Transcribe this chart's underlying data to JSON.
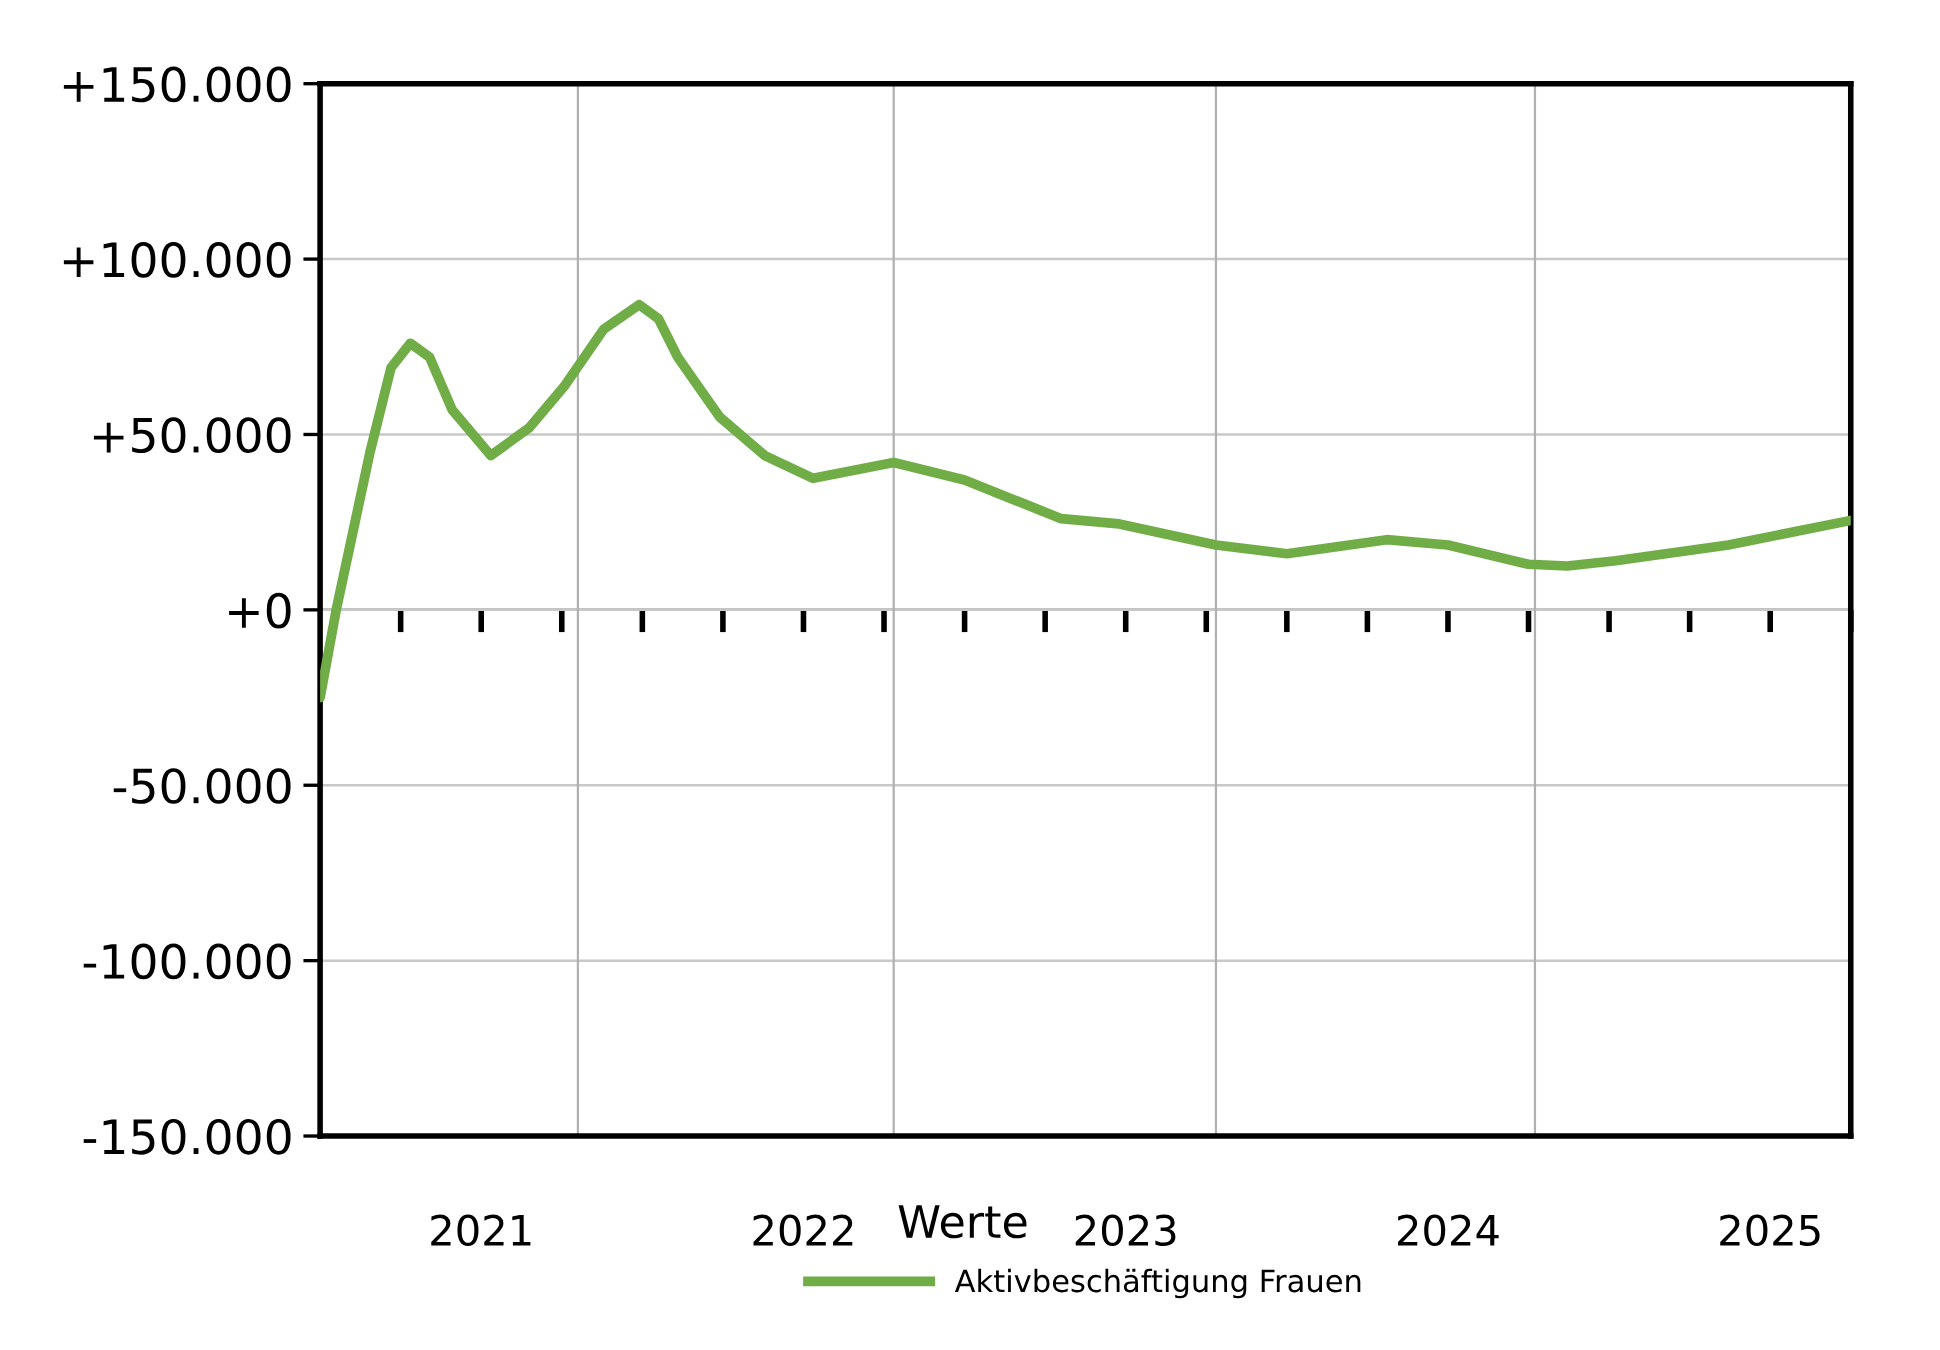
{
  "chart_data": {
    "type": "line",
    "xlabel": "Werte",
    "x": [
      2020.5,
      2020.55,
      2020.655,
      2020.72,
      2020.78,
      2020.84,
      2020.91,
      2021.03,
      2021.15,
      2021.26,
      2021.38,
      2021.49,
      2021.55,
      2021.61,
      2021.74,
      2021.88,
      2022.03,
      2022.28,
      2022.5,
      2022.8,
      2022.98,
      2023.28,
      2023.5,
      2023.81,
      2024.0,
      2024.25,
      2024.37,
      2024.52,
      2024.87,
      2025.25
    ],
    "series": [
      {
        "name": "Aktivbeschäftigung Frauen",
        "color": "#70ad47",
        "values": [
          -25000,
          0,
          45000,
          69000,
          76000,
          72000,
          57000,
          44000,
          52000,
          64000,
          80000,
          87000,
          83000,
          72000,
          55000,
          44000,
          37500,
          42000,
          37000,
          26000,
          24500,
          18500,
          16000,
          20000,
          18500,
          13000,
          12500,
          14000,
          18500,
          25500
        ]
      }
    ],
    "xlim": [
      2020.5,
      2025.25
    ],
    "xticks": [
      {
        "value": 2020.75,
        "label": null
      },
      {
        "value": 2021,
        "label": "2021"
      },
      {
        "value": 2021.25,
        "label": null
      },
      {
        "value": 2021.5,
        "label": null
      },
      {
        "value": 2021.75,
        "label": null
      },
      {
        "value": 2022,
        "label": "2022"
      },
      {
        "value": 2022.25,
        "label": null
      },
      {
        "value": 2022.5,
        "label": null
      },
      {
        "value": 2022.75,
        "label": null
      },
      {
        "value": 2023,
        "label": "2023"
      },
      {
        "value": 2023.25,
        "label": null
      },
      {
        "value": 2023.5,
        "label": null
      },
      {
        "value": 2023.75,
        "label": null
      },
      {
        "value": 2024,
        "label": "2024"
      },
      {
        "value": 2024.25,
        "label": null
      },
      {
        "value": 2024.5,
        "label": null
      },
      {
        "value": 2024.75,
        "label": null
      },
      {
        "value": 2025,
        "label": "2025"
      },
      {
        "value": 2025.25,
        "label": null
      }
    ],
    "ylim": [
      -150000,
      150000
    ],
    "yticks": [
      {
        "value": -150000,
        "label": "-150.000"
      },
      {
        "value": -100000,
        "label": "-100.000"
      },
      {
        "value": -50000,
        "label": "-50.000"
      },
      {
        "value": 0,
        "label": "+0"
      },
      {
        "value": 50000,
        "label": "+50.000"
      },
      {
        "value": 100000,
        "label": "+100.000"
      },
      {
        "value": 150000,
        "label": "+150.000"
      }
    ],
    "ref_lines": [
      {
        "axis": "x",
        "value": 2021.3,
        "color": "#b0b0b0"
      },
      {
        "axis": "x",
        "value": 2022.28,
        "color": "#b0b0b0"
      },
      {
        "axis": "x",
        "value": 2023.28,
        "color": "#b0b0b0"
      },
      {
        "axis": "x",
        "value": 2024.27,
        "color": "#b0b0b0"
      }
    ],
    "grid": "y",
    "legend": "bottom",
    "marker": "none",
    "line_style": "solid"
  }
}
